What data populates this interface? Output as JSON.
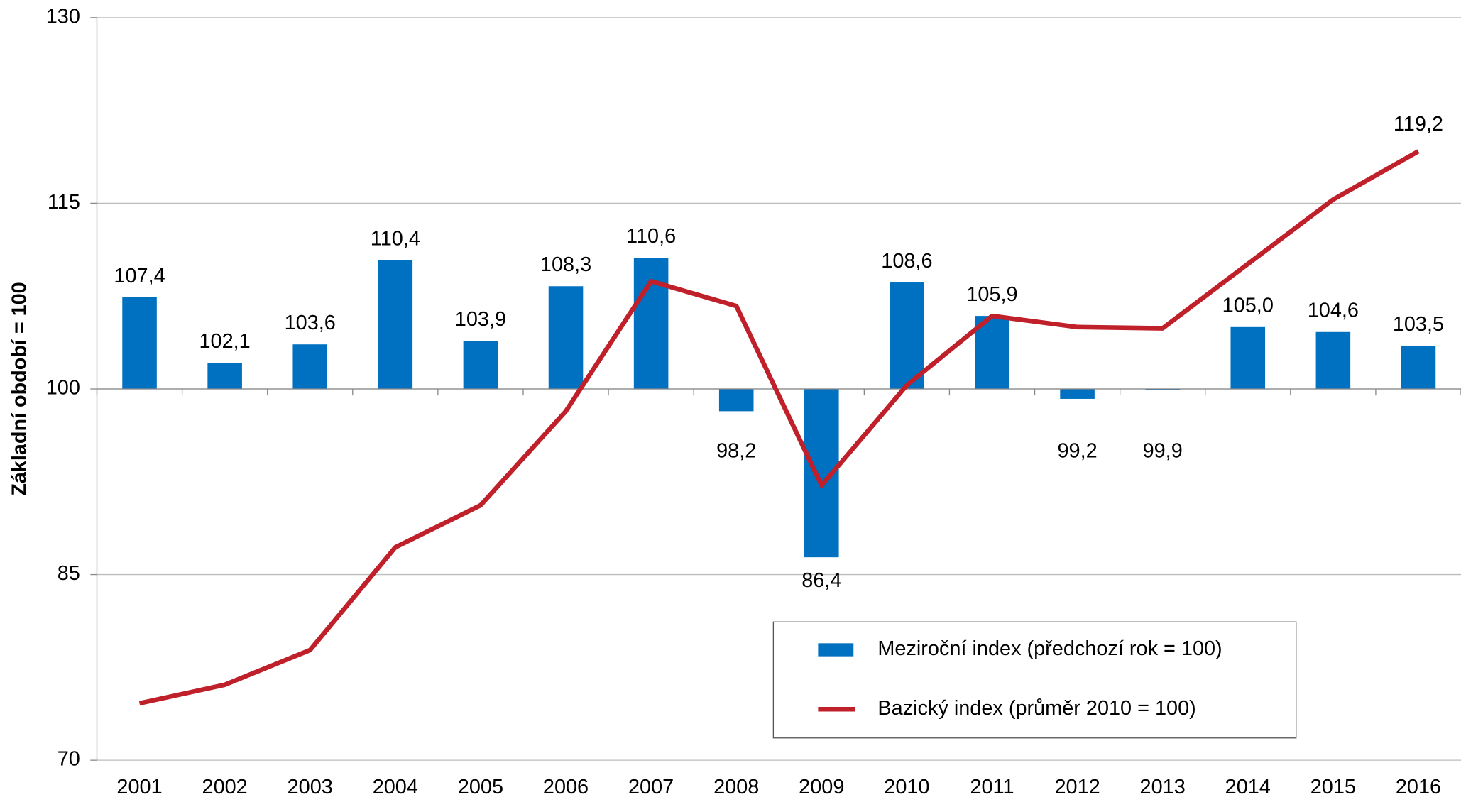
{
  "chart_data": {
    "type": "bar_line",
    "y_label": "Základní období = 100",
    "categories": [
      "2001",
      "2002",
      "2003",
      "2004",
      "2005",
      "2006",
      "2007",
      "2008",
      "2009",
      "2010",
      "2011",
      "2012",
      "2013",
      "2014",
      "2015",
      "2016"
    ],
    "series": [
      {
        "name": "Meziroční index (předchozí rok = 100)",
        "type": "bar",
        "color": "#0070c0",
        "values": [
          107.4,
          102.1,
          103.6,
          110.4,
          103.9,
          108.3,
          110.6,
          98.2,
          86.4,
          108.6,
          105.9,
          99.2,
          99.9,
          105.0,
          104.6,
          103.5
        ],
        "value_labels": [
          "107,4",
          "102,1",
          "103,6",
          "110,4",
          "103,9",
          "108,3",
          "110,6",
          "98,2",
          "86,4",
          "108,6",
          "105,9",
          "99,2",
          "99,9",
          "105,0",
          "104,6",
          "103,5"
        ]
      },
      {
        "name": "Bazický index (průměr 2010 = 100)",
        "type": "line",
        "color": "#c0202a",
        "values": [
          74.6,
          76.1,
          78.9,
          87.2,
          90.6,
          98.2,
          108.7,
          106.7,
          92.2,
          100.3,
          105.9,
          105.0,
          104.9,
          110.1,
          115.3,
          119.2
        ],
        "value_labels": [
          null,
          null,
          null,
          null,
          null,
          null,
          null,
          null,
          null,
          null,
          null,
          null,
          null,
          null,
          null,
          "119,2"
        ]
      }
    ],
    "ylim": [
      70,
      130
    ],
    "yticks": [
      70,
      85,
      100,
      115,
      130
    ],
    "bar_origin": 100,
    "grid": true,
    "legend": "bottom-right"
  }
}
